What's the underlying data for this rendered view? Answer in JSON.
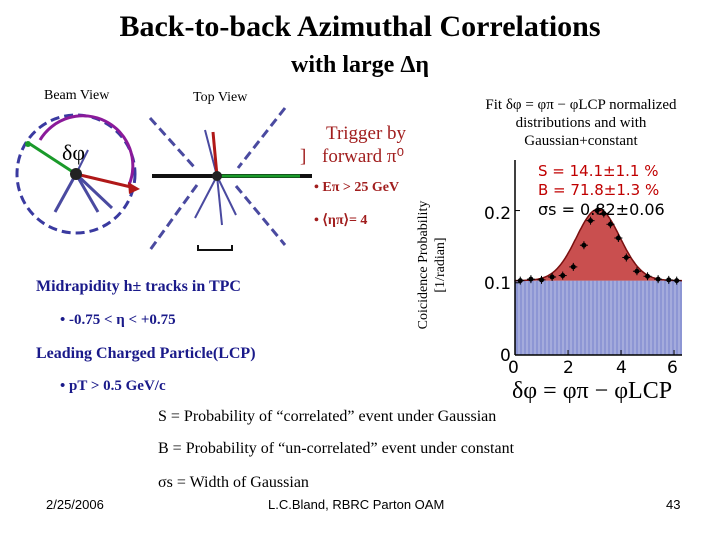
{
  "title": {
    "main": "Back-to-back Azimuthal Correlations",
    "sub": "with large Δη"
  },
  "views": {
    "beam": "Beam View",
    "top": "Top View",
    "dphi": "δφ"
  },
  "trigger": {
    "line1": "Trigger by",
    "line2": "forward π⁰",
    "bracket": "]",
    "bullet1": "• Eπ > 25 GeV",
    "bullet2": "• ⟨ηπ⟩= 4"
  },
  "midrapidity": {
    "heading": "Midrapidity h± tracks in TPC",
    "bullet": "• -0.75 < η < +0.75"
  },
  "lcp": {
    "heading": "Leading Charged Particle(LCP)",
    "bullet": "• pT > 0.5 GeV/c"
  },
  "fit": {
    "line1": "Fit δφ = φπ − φLCP normalized",
    "line2": "distributions and with",
    "line3": "Gaussian+constant"
  },
  "plot": {
    "ylabel1": "Coicidence Probability",
    "ylabel2": "[1/radian]",
    "stat1": "S = 14.1±1.1 %",
    "stat2": "B = 71.8±1.3 %",
    "stat3": "σs = 0.82±0.06",
    "xlabel": "δφ = φπ − φLCP",
    "ytick_02": "0.2",
    "ytick_01": "0.1",
    "ytick_0": "0",
    "xtick_0": "0",
    "xtick_2": "2",
    "xtick_4": "4",
    "xtick_6": "6"
  },
  "definitions": {
    "s": "S = Probability of “correlated” event under Gaussian",
    "b": "B = Probability of “un-correlated” event under constant",
    "sigma": "σs = Width of Gaussian"
  },
  "footer": {
    "date": "2/25/2006",
    "author": "L.C.Bland, RBRC Parton OAM",
    "page": "43"
  },
  "chart_data": {
    "type": "scatter",
    "x": [
      0.2,
      0.6,
      1.0,
      1.4,
      1.8,
      2.2,
      2.6,
      2.85,
      3.1,
      3.35,
      3.6,
      3.9,
      4.2,
      4.6,
      5.0,
      5.4,
      5.8,
      6.1
    ],
    "y": [
      0.103,
      0.105,
      0.104,
      0.108,
      0.11,
      0.122,
      0.152,
      0.186,
      0.2,
      0.196,
      0.181,
      0.162,
      0.135,
      0.116,
      0.109,
      0.105,
      0.104,
      0.103
    ],
    "xlim": [
      0,
      6.3
    ],
    "ylim": [
      0,
      0.27
    ],
    "xlabel": "δφ = φπ − φLCP",
    "ylabel": "Coicidence Probability [1/radian]",
    "fit": {
      "S": 14.1,
      "B": 71.8,
      "sigma": 0.82,
      "baseline": 0.103,
      "peak": 0.202,
      "mean": 3.14
    },
    "colors": {
      "gauss": "#c03030",
      "const": "#3040b0"
    }
  }
}
